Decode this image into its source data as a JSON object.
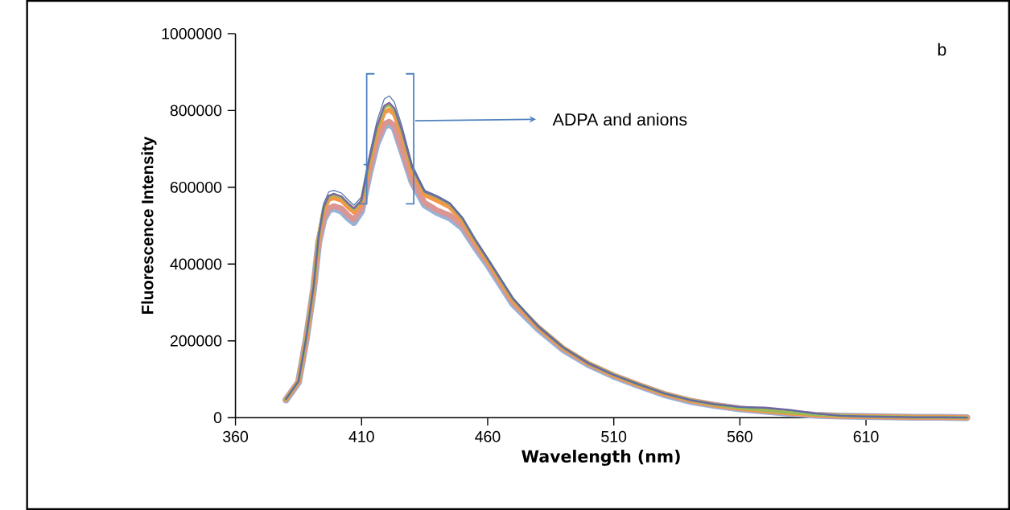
{
  "chart_data": {
    "type": "line",
    "xlabel": "Wavelength (nm)",
    "ylabel": "Fluorescence Intensity",
    "x": [
      380,
      385,
      388,
      391,
      393,
      395,
      397,
      399,
      402,
      405,
      407,
      410,
      413,
      416,
      419,
      421,
      423,
      426,
      430,
      435,
      440,
      445,
      450,
      455,
      460,
      470,
      480,
      490,
      500,
      510,
      520,
      530,
      540,
      550,
      560,
      570,
      580,
      590,
      600,
      610,
      620,
      630,
      640,
      650
    ],
    "series": [
      {
        "color": "#95b3d7",
        "values": [
          46000,
          92000,
          202000,
          336000,
          456000,
          515000,
          540000,
          545000,
          538000,
          518000,
          508000,
          538000,
          632000,
          712000,
          758000,
          765000,
          754000,
          694000,
          614000,
          554000,
          534000,
          520000,
          494000,
          444000,
          398000,
          296000,
          231000,
          177000,
          138000,
          108000,
          83000,
          60000,
          43000,
          32000,
          23000,
          17000,
          11000,
          6000,
          4000,
          3000,
          2000,
          1000,
          1000,
          0
        ]
      },
      {
        "color": "#d99694",
        "values": [
          47000,
          94000,
          204000,
          339000,
          460000,
          520000,
          545000,
          551000,
          545000,
          525000,
          516000,
          545000,
          640000,
          720000,
          765000,
          771000,
          760000,
          700000,
          620000,
          560000,
          540000,
          527000,
          500000,
          450000,
          404000,
          300000,
          235000,
          180000,
          140000,
          110000,
          85000,
          62000,
          45000,
          33000,
          24000,
          18000,
          12000,
          7000,
          4000,
          3000,
          2000,
          1000,
          1000,
          0
        ]
      },
      {
        "color": "#f79646",
        "values": [
          47000,
          94000,
          205000,
          341000,
          468000,
          540000,
          568000,
          572000,
          566000,
          546000,
          535000,
          558000,
          658000,
          742000,
          795000,
          802000,
          790000,
          735000,
          642000,
          580000,
          565000,
          548000,
          512000,
          458000,
          408000,
          305000,
          236000,
          181000,
          141000,
          110000,
          85000,
          62000,
          45000,
          33000,
          24000,
          18000,
          12000,
          7000,
          4000,
          3000,
          2000,
          1000,
          1000,
          0
        ]
      },
      {
        "color": "#9bbb59",
        "values": [
          47000,
          95000,
          206000,
          342000,
          472000,
          548000,
          576000,
          580000,
          574000,
          555000,
          543000,
          565000,
          665000,
          752000,
          808000,
          815000,
          802000,
          745000,
          650000,
          588000,
          574000,
          556000,
          518000,
          462000,
          412000,
          309000,
          237000,
          182000,
          141000,
          111000,
          86000,
          63000,
          46000,
          34000,
          25000,
          19000,
          13000,
          8000,
          5000,
          3000,
          2000,
          1000,
          1000,
          0
        ]
      },
      {
        "color": "#8064a2",
        "values": [
          48000,
          95000,
          206000,
          342000,
          472000,
          548000,
          578000,
          583000,
          576000,
          556000,
          545000,
          566000,
          668000,
          756000,
          812000,
          820000,
          806000,
          748000,
          652000,
          588000,
          575000,
          557000,
          519000,
          463000,
          413000,
          310000,
          237000,
          182000,
          141000,
          111000,
          86000,
          63000,
          46000,
          35000,
          28000,
          26000,
          20000,
          11000,
          5000,
          3000,
          2000,
          1000,
          1000,
          0
        ]
      },
      {
        "color": "#4f6fa8",
        "values": [
          48000,
          95000,
          208000,
          345000,
          478000,
          558000,
          588000,
          592000,
          585000,
          565000,
          553000,
          575000,
          680000,
          770000,
          830000,
          838000,
          822000,
          760000,
          660000,
          592000,
          578000,
          560000,
          522000,
          466000,
          416000,
          312000,
          240000,
          184000,
          143000,
          112000,
          87000,
          64000,
          47000,
          35000,
          27000,
          25000,
          19000,
          10000,
          5000,
          3000,
          2000,
          1000,
          1000,
          0
        ]
      }
    ],
    "xlim": [
      360,
      650
    ],
    "ylim": [
      0,
      1000000
    ],
    "xticks": [
      360,
      410,
      460,
      510,
      560,
      610
    ],
    "yticks": [
      0,
      200000,
      400000,
      600000,
      800000,
      1000000
    ],
    "annotations": [
      "b",
      "ADPA and anions"
    ]
  }
}
